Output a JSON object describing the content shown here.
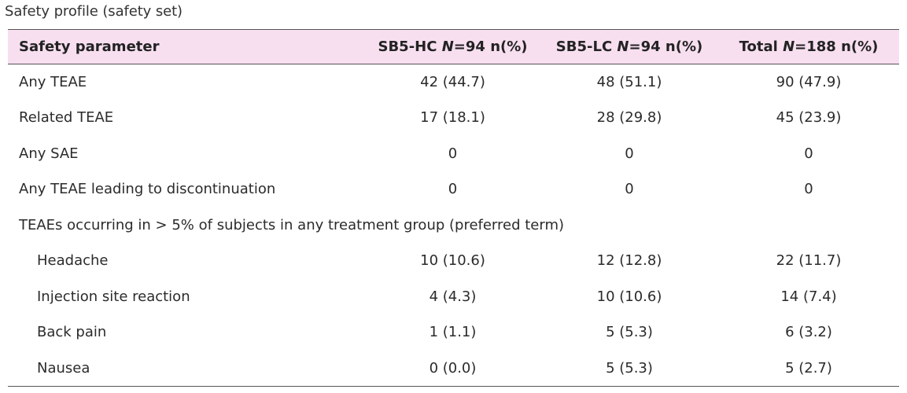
{
  "caption": "Safety profile (safety set)",
  "header": {
    "col0": "Safety parameter",
    "col1": {
      "prefix": "SB5-HC ",
      "n_italic": "N",
      "suffix": "=94 n(%)"
    },
    "col2": {
      "prefix": "SB5-LC ",
      "n_italic": "N",
      "suffix": "=94 n(%)"
    },
    "col3": {
      "prefix": "Total ",
      "n_italic": "N",
      "suffix": "=188 n(%)"
    }
  },
  "rows": [
    {
      "label": "Any TEAE",
      "hc": "42 (44.7)",
      "lc": "48 (51.1)",
      "total": "90 (47.9)"
    },
    {
      "label": "Related TEAE",
      "hc": "17 (18.1)",
      "lc": "28 (29.8)",
      "total": "45 (23.9)"
    },
    {
      "label": "Any SAE",
      "hc": "0",
      "lc": "0",
      "total": "0"
    },
    {
      "label": "Any TEAE leading to discontinuation",
      "hc": "0",
      "lc": "0",
      "total": "0"
    }
  ],
  "section_label": "TEAEs occurring in > 5% of subjects in any treatment group (preferred term)",
  "sub_rows": [
    {
      "label": "Headache",
      "hc": "10 (10.6)",
      "lc": "12 (12.8)",
      "total": "22 (11.7)"
    },
    {
      "label": "Injection site reaction",
      "hc": "4 (4.3)",
      "lc": "10 (10.6)",
      "total": "14 (7.4)"
    },
    {
      "label": "Back pain",
      "hc": "1 (1.1)",
      "lc": "5 (5.3)",
      "total": "6 (3.2)"
    },
    {
      "label": "Nausea",
      "hc": "0 (0.0)",
      "lc": "5 (5.3)",
      "total": "5 (2.7)"
    }
  ]
}
